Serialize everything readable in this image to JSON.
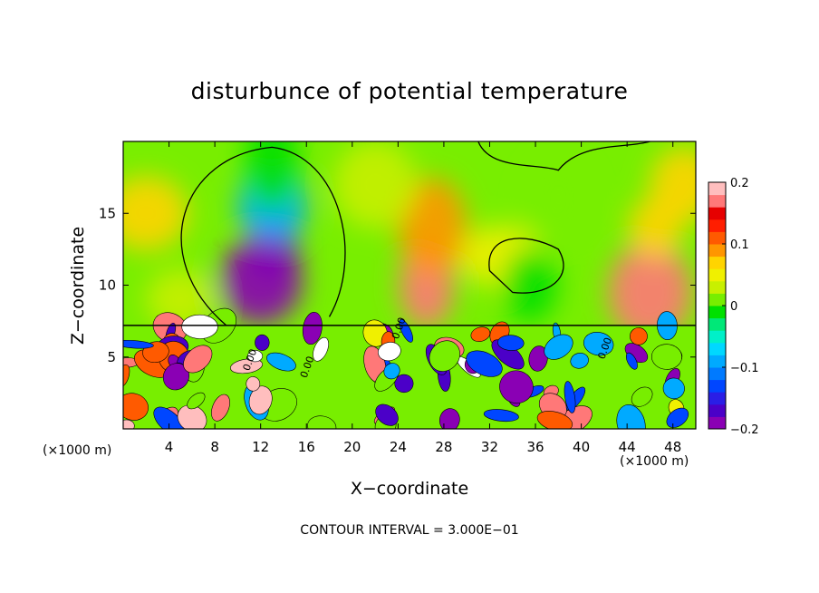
{
  "chart_data": {
    "type": "heatmap",
    "title": "disturbunce of potential temperature",
    "xlabel": "X−coordinate",
    "ylabel": "Z−coordinate",
    "x_unit_left": "(×1000 m)",
    "x_unit_right": "(×1000 m)",
    "annotation": "CONTOUR INTERVAL = 3.000E−01",
    "xlim": [
      0,
      50
    ],
    "ylim": [
      0,
      20
    ],
    "x_ticks": [
      4,
      8,
      12,
      16,
      20,
      24,
      28,
      32,
      36,
      40,
      44,
      48
    ],
    "x_tick_labels": [
      "4",
      "8",
      "12",
      "16",
      "20",
      "24",
      "28",
      "32",
      "36",
      "40",
      "44",
      "48"
    ],
    "y_ticks": [
      5,
      10,
      15
    ],
    "y_tick_labels": [
      "5",
      "10",
      "15"
    ],
    "colorbar": {
      "range": [
        -0.2,
        0.2
      ],
      "ticks": [
        0.2,
        0.1,
        0,
        -0.1,
        -0.2
      ],
      "tick_labels": [
        "0.2",
        "0.1",
        "0",
        "−0.1",
        "−0.2"
      ],
      "colors": [
        "#8a00b4",
        "#4b00c8",
        "#2a1ee6",
        "#0046ff",
        "#007aff",
        "#00aaff",
        "#00d8ff",
        "#00f0c8",
        "#00e878",
        "#00e000",
        "#78ee00",
        "#c8f000",
        "#f0f000",
        "#ffd400",
        "#ff9600",
        "#ff5a00",
        "#ff1e00",
        "#e60000",
        "#ff7878",
        "#ffbebe"
      ]
    },
    "contour_labels": [
      "0.00",
      "0.00",
      "0.00",
      "0.00"
    ],
    "grid": false,
    "legend": "colorbar-right",
    "features": [
      {
        "x": 13,
        "z": 12.5,
        "value": -0.17
      },
      {
        "x": 13,
        "z": 15.5,
        "value": -0.09
      },
      {
        "x": 12,
        "z": 10.3,
        "value": -0.2
      },
      {
        "x": 13,
        "z": 18.5,
        "value": -0.02
      },
      {
        "x": 5,
        "z": 9,
        "value": 0.03
      },
      {
        "x": 2,
        "z": 15,
        "value": 0.06
      },
      {
        "x": 26.5,
        "z": 10,
        "value": 0.16
      },
      {
        "x": 27,
        "z": 14,
        "value": 0.08
      },
      {
        "x": 33,
        "z": 12,
        "value": 0.05
      },
      {
        "x": 35.5,
        "z": 10,
        "value": -0.02
      },
      {
        "x": 38,
        "z": 16,
        "value": 0.01
      },
      {
        "x": 46,
        "z": 9.5,
        "value": 0.16
      },
      {
        "x": 46.5,
        "z": 14,
        "value": 0.06
      },
      {
        "x": 49,
        "z": 17,
        "value": 0.07
      },
      {
        "x": 22,
        "z": 17,
        "value": 0.03
      }
    ]
  }
}
